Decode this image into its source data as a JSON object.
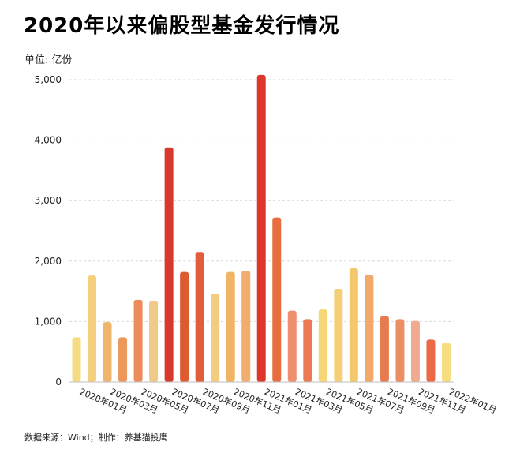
{
  "title": "2020年以来偏股型基金发行情况",
  "unit_label": "单位: 亿份",
  "source_label": "数据来源：Wind；制作：养基猫投鹰",
  "chart_data": {
    "type": "bar",
    "categories": [
      "2020年01月",
      "2020年02月",
      "2020年03月",
      "2020年04月",
      "2020年05月",
      "2020年06月",
      "2020年07月",
      "2020年08月",
      "2020年09月",
      "2020年10月",
      "2020年11月",
      "2020年12月",
      "2021年01月",
      "2021年02月",
      "2021年03月",
      "2021年04月",
      "2021年05月",
      "2021年06月",
      "2021年07月",
      "2021年08月",
      "2021年09月",
      "2021年10月",
      "2021年11月",
      "2021年12月",
      "2022年01月"
    ],
    "x_tick_labels": [
      "2020年01月",
      "2020年03月",
      "2020年05月",
      "2020年07月",
      "2020年09月",
      "2020年11月",
      "2021年01月",
      "2021年03月",
      "2021年05月",
      "2021年07月",
      "2021年09月",
      "2021年11月",
      "2022年01月"
    ],
    "values": [
      740,
      1760,
      990,
      740,
      1360,
      1340,
      3880,
      1820,
      2150,
      1460,
      1820,
      1840,
      5080,
      2720,
      1180,
      1040,
      1200,
      1540,
      1880,
      1770,
      1090,
      1040,
      1010,
      700,
      650
    ],
    "colors": [
      "#f5dc82",
      "#f4cf7e",
      "#f0b56c",
      "#ec985a",
      "#ec8c5c",
      "#f1c988",
      "#d73a2c",
      "#de5b32",
      "#e05e3b",
      "#f4cc80",
      "#f0b464",
      "#f1ad6e",
      "#dd372c",
      "#e76c3f",
      "#f08f70",
      "#ec7a55",
      "#f5d778",
      "#f4cf78",
      "#f4c86a",
      "#f2a86a",
      "#e67b50",
      "#ed8d62",
      "#f1aa90",
      "#ea6a45",
      "#f6dd80"
    ],
    "yticks": [
      0,
      1000,
      2000,
      3000,
      4000,
      5000
    ],
    "ytick_labels": [
      "0",
      "1,000",
      "2,000",
      "3,000",
      "4,000",
      "5,000"
    ],
    "ylim": [
      0,
      5000
    ],
    "grid": true,
    "xlabel": "",
    "ylabel": "亿份"
  }
}
